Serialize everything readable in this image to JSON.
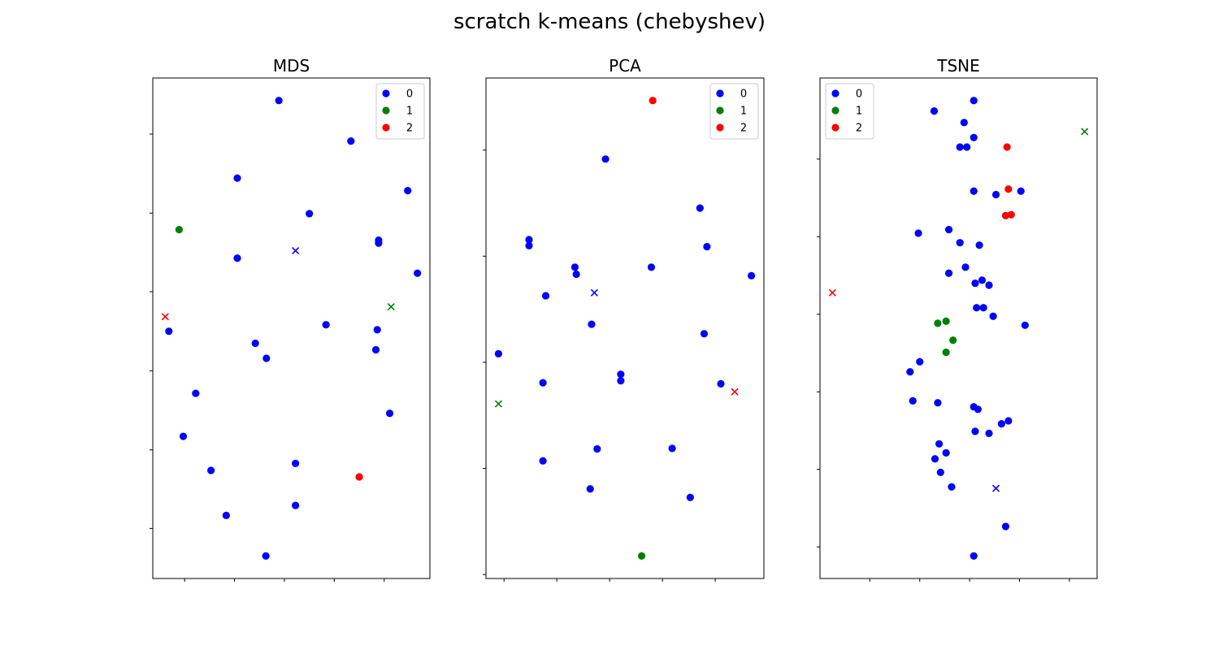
{
  "figure": {
    "title": "scratch k-means (chebyshev)"
  },
  "colors": {
    "0": "#0000ff",
    "1": "#008000",
    "2": "#ff0000"
  },
  "chart_data": [
    {
      "type": "scatter",
      "title": "MDS",
      "xlim": [
        0,
        1
      ],
      "ylim": [
        0,
        1
      ],
      "grid": false,
      "legend": {
        "placement": "top-right",
        "entries": [
          "0",
          "1",
          "2"
        ]
      },
      "xticks": [
        0.115,
        0.295,
        0.475,
        0.655,
        0.835
      ],
      "yticks": [
        0.1,
        0.257,
        0.415,
        0.573,
        0.73,
        0.888
      ],
      "series": [
        {
          "name": "0",
          "points": [
            [
              0.455,
              0.955
            ],
            [
              0.715,
              0.874
            ],
            [
              0.305,
              0.8
            ],
            [
              0.92,
              0.775
            ],
            [
              0.565,
              0.729
            ],
            [
              0.305,
              0.64
            ],
            [
              0.815,
              0.676
            ],
            [
              0.815,
              0.67
            ],
            [
              0.955,
              0.61
            ],
            [
              0.625,
              0.507
            ],
            [
              0.81,
              0.497
            ],
            [
              0.058,
              0.494
            ],
            [
              0.37,
              0.47
            ],
            [
              0.41,
              0.44
            ],
            [
              0.805,
              0.457
            ],
            [
              0.155,
              0.37
            ],
            [
              0.855,
              0.33
            ],
            [
              0.11,
              0.284
            ],
            [
              0.21,
              0.216
            ],
            [
              0.515,
              0.23
            ],
            [
              0.265,
              0.126
            ],
            [
              0.515,
              0.146
            ],
            [
              0.408,
              0.045
            ]
          ]
        },
        {
          "name": "1",
          "points": [
            [
              0.095,
              0.697
            ]
          ]
        },
        {
          "name": "2",
          "points": [
            [
              0.745,
              0.203
            ]
          ]
        }
      ],
      "centroids": [
        {
          "cluster": "0",
          "point": [
            0.515,
            0.655
          ]
        },
        {
          "cluster": "1",
          "point": [
            0.86,
            0.543
          ]
        },
        {
          "cluster": "2",
          "point": [
            0.045,
            0.523
          ]
        }
      ]
    },
    {
      "type": "scatter",
      "title": "PCA",
      "xlim": [
        0,
        1
      ],
      "ylim": [
        0,
        1
      ],
      "grid": false,
      "legend": {
        "placement": "top-right",
        "entries": [
          "0",
          "1",
          "2"
        ]
      },
      "xticks": [
        0.065,
        0.255,
        0.445,
        0.635,
        0.825
      ],
      "yticks": [
        0.008,
        0.22,
        0.432,
        0.644,
        0.856
      ],
      "series": [
        {
          "name": "0",
          "points": [
            [
              0.43,
              0.838
            ],
            [
              0.77,
              0.74
            ],
            [
              0.155,
              0.677
            ],
            [
              0.155,
              0.665
            ],
            [
              0.795,
              0.663
            ],
            [
              0.32,
              0.622
            ],
            [
              0.595,
              0.622
            ],
            [
              0.325,
              0.608
            ],
            [
              0.215,
              0.565
            ],
            [
              0.955,
              0.605
            ],
            [
              0.38,
              0.508
            ],
            [
              0.785,
              0.489
            ],
            [
              0.045,
              0.449
            ],
            [
              0.485,
              0.408
            ],
            [
              0.485,
              0.395
            ],
            [
              0.205,
              0.391
            ],
            [
              0.845,
              0.389
            ],
            [
              0.4,
              0.259
            ],
            [
              0.67,
              0.26
            ],
            [
              0.205,
              0.235
            ],
            [
              0.375,
              0.179
            ],
            [
              0.735,
              0.162
            ]
          ]
        },
        {
          "name": "1",
          "points": [
            [
              0.56,
              0.045
            ]
          ]
        },
        {
          "name": "2",
          "points": [
            [
              0.6,
              0.955
            ]
          ]
        }
      ],
      "centroids": [
        {
          "cluster": "0",
          "point": [
            0.39,
            0.571
          ]
        },
        {
          "cluster": "1",
          "point": [
            0.045,
            0.349
          ]
        },
        {
          "cluster": "2",
          "point": [
            0.895,
            0.373
          ]
        }
      ]
    },
    {
      "type": "scatter",
      "title": "TSNE",
      "xlim": [
        0,
        1
      ],
      "ylim": [
        0,
        1
      ],
      "grid": false,
      "legend": {
        "placement": "top-left",
        "entries": [
          "0",
          "1",
          "2"
        ]
      },
      "xticks": [
        0.18,
        0.36,
        0.54,
        0.72,
        0.9
      ],
      "yticks": [
        0.063,
        0.218,
        0.373,
        0.528,
        0.683,
        0.838
      ],
      "series": [
        {
          "name": "0",
          "points": [
            [
              0.555,
              0.955
            ],
            [
              0.412,
              0.934
            ],
            [
              0.52,
              0.911
            ],
            [
              0.555,
              0.881
            ],
            [
              0.505,
              0.862
            ],
            [
              0.53,
              0.862
            ],
            [
              0.555,
              0.774
            ],
            [
              0.635,
              0.767
            ],
            [
              0.725,
              0.774
            ],
            [
              0.355,
              0.69
            ],
            [
              0.465,
              0.697
            ],
            [
              0.505,
              0.671
            ],
            [
              0.575,
              0.666
            ],
            [
              0.525,
              0.622
            ],
            [
              0.465,
              0.61
            ],
            [
              0.585,
              0.596
            ],
            [
              0.56,
              0.59
            ],
            [
              0.61,
              0.586
            ],
            [
              0.565,
              0.541
            ],
            [
              0.59,
              0.541
            ],
            [
              0.625,
              0.524
            ],
            [
              0.74,
              0.506
            ],
            [
              0.325,
              0.413
            ],
            [
              0.36,
              0.433
            ],
            [
              0.425,
              0.351
            ],
            [
              0.335,
              0.355
            ],
            [
              0.555,
              0.343
            ],
            [
              0.57,
              0.338
            ],
            [
              0.68,
              0.315
            ],
            [
              0.655,
              0.309
            ],
            [
              0.56,
              0.294
            ],
            [
              0.61,
              0.29
            ],
            [
              0.43,
              0.269
            ],
            [
              0.455,
              0.251
            ],
            [
              0.415,
              0.239
            ],
            [
              0.435,
              0.212
            ],
            [
              0.475,
              0.183
            ],
            [
              0.67,
              0.104
            ],
            [
              0.555,
              0.045
            ]
          ]
        },
        {
          "name": "1",
          "points": [
            [
              0.455,
              0.514
            ],
            [
              0.48,
              0.476
            ],
            [
              0.455,
              0.452
            ],
            [
              0.425,
              0.51
            ]
          ]
        },
        {
          "name": "2",
          "points": [
            [
              0.675,
              0.862
            ],
            [
              0.68,
              0.778
            ],
            [
              0.69,
              0.727
            ],
            [
              0.67,
              0.725
            ]
          ]
        }
      ],
      "centroids": [
        {
          "cluster": "0",
          "point": [
            0.635,
            0.18
          ]
        },
        {
          "cluster": "1",
          "point": [
            0.955,
            0.893
          ]
        },
        {
          "cluster": "2",
          "point": [
            0.045,
            0.571
          ]
        }
      ]
    }
  ]
}
